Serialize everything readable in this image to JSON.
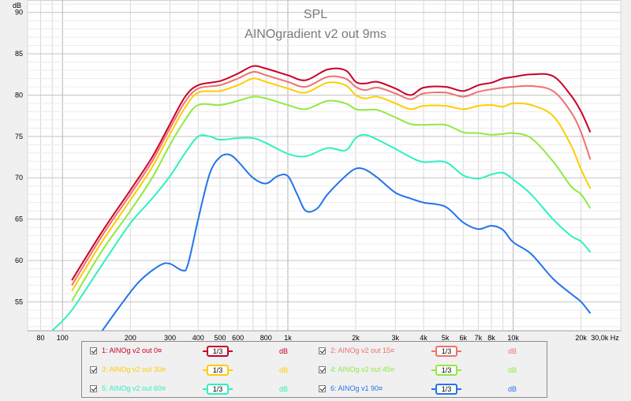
{
  "chart_data": {
    "type": "line",
    "title": "SPL",
    "subtitle": "AINOgradient v2 out 9ms",
    "y_unit": "dB",
    "x_unit": "Hz",
    "xscale": "log",
    "xlim": [
      70,
      30000
    ],
    "ylim": [
      51.5,
      91.5
    ],
    "grid": true,
    "legend_position": "bottom",
    "x_ticks": [
      {
        "v": 80,
        "label": "80"
      },
      {
        "v": 100,
        "label": "100"
      },
      {
        "v": 200,
        "label": "200"
      },
      {
        "v": 300,
        "label": "300"
      },
      {
        "v": 400,
        "label": "400"
      },
      {
        "v": 500,
        "label": "500"
      },
      {
        "v": 600,
        "label": "600"
      },
      {
        "v": 800,
        "label": "800"
      },
      {
        "v": 1000,
        "label": "1k"
      },
      {
        "v": 2000,
        "label": "2k"
      },
      {
        "v": 3000,
        "label": "3k"
      },
      {
        "v": 4000,
        "label": "4k"
      },
      {
        "v": 5000,
        "label": "5k"
      },
      {
        "v": 6000,
        "label": "6k"
      },
      {
        "v": 7000,
        "label": "7k"
      },
      {
        "v": 8000,
        "label": "8k"
      },
      {
        "v": 10000,
        "label": "10k"
      },
      {
        "v": 20000,
        "label": "20k"
      },
      {
        "v": 30000,
        "label": "30,0k Hz"
      }
    ],
    "y_ticks": [
      {
        "v": 90,
        "label": "90"
      },
      {
        "v": 85,
        "label": "85"
      },
      {
        "v": 80,
        "label": "80"
      },
      {
        "v": 75,
        "label": "75"
      },
      {
        "v": 70,
        "label": "70"
      },
      {
        "v": 65,
        "label": "65"
      },
      {
        "v": 60,
        "label": "60"
      },
      {
        "v": 55,
        "label": "55"
      }
    ],
    "series": [
      {
        "name": "1: AINOg v2 out 0°",
        "color": "#c8002a",
        "points": [
          [
            110,
            57.6
          ],
          [
            150,
            63.5
          ],
          [
            200,
            68.5
          ],
          [
            250,
            72.5
          ],
          [
            300,
            76.5
          ],
          [
            350,
            79.8
          ],
          [
            400,
            81.2
          ],
          [
            500,
            81.7
          ],
          [
            600,
            82.6
          ],
          [
            700,
            83.5
          ],
          [
            800,
            83.2
          ],
          [
            1000,
            82.4
          ],
          [
            1200,
            81.8
          ],
          [
            1500,
            83.1
          ],
          [
            1800,
            83.0
          ],
          [
            2000,
            81.6
          ],
          [
            2200,
            81.4
          ],
          [
            2500,
            81.6
          ],
          [
            3000,
            80.8
          ],
          [
            3500,
            80.0
          ],
          [
            4000,
            80.9
          ],
          [
            5000,
            81.0
          ],
          [
            6000,
            80.5
          ],
          [
            7000,
            81.2
          ],
          [
            8000,
            81.5
          ],
          [
            9000,
            82.0
          ],
          [
            10000,
            82.2
          ],
          [
            12000,
            82.5
          ],
          [
            15000,
            82.3
          ],
          [
            18000,
            80.0
          ],
          [
            20000,
            78.0
          ],
          [
            22000,
            75.5
          ]
        ]
      },
      {
        "name": "2: AINOg v2 out 15°",
        "color": "#f07070",
        "points": [
          [
            110,
            57.0
          ],
          [
            150,
            63.0
          ],
          [
            200,
            68.0
          ],
          [
            250,
            72.0
          ],
          [
            300,
            76.0
          ],
          [
            350,
            79.2
          ],
          [
            400,
            80.8
          ],
          [
            500,
            81.2
          ],
          [
            600,
            82.0
          ],
          [
            700,
            82.8
          ],
          [
            800,
            82.4
          ],
          [
            1000,
            81.6
          ],
          [
            1200,
            81.0
          ],
          [
            1500,
            82.2
          ],
          [
            1800,
            82.0
          ],
          [
            2000,
            81.0
          ],
          [
            2200,
            80.6
          ],
          [
            2500,
            80.9
          ],
          [
            3000,
            80.2
          ],
          [
            3500,
            79.5
          ],
          [
            4000,
            80.2
          ],
          [
            5000,
            80.3
          ],
          [
            6000,
            79.8
          ],
          [
            7000,
            80.4
          ],
          [
            8000,
            80.7
          ],
          [
            9000,
            80.9
          ],
          [
            10000,
            81.0
          ],
          [
            12000,
            81.1
          ],
          [
            15000,
            80.5
          ],
          [
            18000,
            78.0
          ],
          [
            20000,
            75.5
          ],
          [
            22000,
            72.2
          ]
        ]
      },
      {
        "name": "3: AINOg v2 out 30°",
        "color": "#ffcc00",
        "points": [
          [
            110,
            56.3
          ],
          [
            150,
            62.3
          ],
          [
            200,
            67.3
          ],
          [
            250,
            71.3
          ],
          [
            300,
            75.3
          ],
          [
            350,
            78.5
          ],
          [
            400,
            80.3
          ],
          [
            500,
            80.5
          ],
          [
            600,
            81.2
          ],
          [
            700,
            82.0
          ],
          [
            800,
            81.6
          ],
          [
            1000,
            80.8
          ],
          [
            1200,
            80.3
          ],
          [
            1500,
            81.5
          ],
          [
            1800,
            81.2
          ],
          [
            2000,
            80.0
          ],
          [
            2200,
            79.6
          ],
          [
            2500,
            79.8
          ],
          [
            3000,
            79.0
          ],
          [
            3500,
            78.3
          ],
          [
            4000,
            78.7
          ],
          [
            5000,
            78.7
          ],
          [
            6000,
            78.3
          ],
          [
            7000,
            78.7
          ],
          [
            8000,
            78.8
          ],
          [
            9000,
            78.6
          ],
          [
            10000,
            79.0
          ],
          [
            12000,
            78.8
          ],
          [
            15000,
            77.5
          ],
          [
            18000,
            74.0
          ],
          [
            20000,
            71.0
          ],
          [
            22000,
            68.7
          ]
        ]
      },
      {
        "name": "4: AINOg v2 out 45°",
        "color": "#90ea40",
        "points": [
          [
            110,
            55.1
          ],
          [
            150,
            61.2
          ],
          [
            200,
            66.0
          ],
          [
            250,
            70.0
          ],
          [
            300,
            74.0
          ],
          [
            350,
            77.0
          ],
          [
            400,
            78.8
          ],
          [
            500,
            78.8
          ],
          [
            600,
            79.3
          ],
          [
            700,
            79.8
          ],
          [
            800,
            79.6
          ],
          [
            1000,
            78.8
          ],
          [
            1200,
            78.3
          ],
          [
            1500,
            79.3
          ],
          [
            1800,
            79.0
          ],
          [
            2000,
            78.3
          ],
          [
            2200,
            78.2
          ],
          [
            2500,
            78.2
          ],
          [
            3000,
            77.3
          ],
          [
            3500,
            76.5
          ],
          [
            4000,
            76.4
          ],
          [
            5000,
            76.4
          ],
          [
            6000,
            75.5
          ],
          [
            7000,
            75.4
          ],
          [
            8000,
            75.2
          ],
          [
            9000,
            75.3
          ],
          [
            10000,
            75.4
          ],
          [
            12000,
            74.8
          ],
          [
            15000,
            72.0
          ],
          [
            18000,
            69.0
          ],
          [
            20000,
            68.0
          ],
          [
            22000,
            66.3
          ]
        ]
      },
      {
        "name": "5: AINOg v2 out 60°",
        "color": "#30f0c0",
        "points": [
          [
            90,
            51.5
          ],
          [
            110,
            54.0
          ],
          [
            150,
            59.5
          ],
          [
            200,
            64.5
          ],
          [
            250,
            67.5
          ],
          [
            300,
            70.2
          ],
          [
            350,
            73.0
          ],
          [
            400,
            75.0
          ],
          [
            450,
            75.0
          ],
          [
            500,
            74.6
          ],
          [
            600,
            74.8
          ],
          [
            700,
            74.8
          ],
          [
            800,
            74.2
          ],
          [
            1000,
            72.9
          ],
          [
            1200,
            72.6
          ],
          [
            1500,
            73.6
          ],
          [
            1800,
            73.3
          ],
          [
            2000,
            74.8
          ],
          [
            2200,
            75.2
          ],
          [
            2500,
            74.6
          ],
          [
            3000,
            73.5
          ],
          [
            3500,
            72.5
          ],
          [
            4000,
            71.9
          ],
          [
            5000,
            71.9
          ],
          [
            6000,
            70.3
          ],
          [
            7000,
            69.9
          ],
          [
            8000,
            70.4
          ],
          [
            9000,
            70.6
          ],
          [
            10000,
            69.8
          ],
          [
            12000,
            68.0
          ],
          [
            15000,
            65.0
          ],
          [
            18000,
            63.0
          ],
          [
            20000,
            62.3
          ],
          [
            22000,
            61.0
          ]
        ]
      },
      {
        "name": "6: AINOg v1 90°",
        "color": "#2474ec",
        "points": [
          [
            150,
            51.5
          ],
          [
            180,
            54.5
          ],
          [
            220,
            57.5
          ],
          [
            270,
            59.4
          ],
          [
            300,
            59.6
          ],
          [
            340,
            58.8
          ],
          [
            360,
            59.5
          ],
          [
            400,
            65.0
          ],
          [
            450,
            70.5
          ],
          [
            500,
            72.5
          ],
          [
            550,
            72.8
          ],
          [
            600,
            72.0
          ],
          [
            700,
            70.0
          ],
          [
            800,
            69.3
          ],
          [
            900,
            70.2
          ],
          [
            1000,
            70.2
          ],
          [
            1100,
            68.0
          ],
          [
            1200,
            66.0
          ],
          [
            1350,
            66.3
          ],
          [
            1500,
            68.0
          ],
          [
            1800,
            70.2
          ],
          [
            2000,
            71.1
          ],
          [
            2200,
            71.0
          ],
          [
            2500,
            70.0
          ],
          [
            3000,
            68.2
          ],
          [
            3500,
            67.5
          ],
          [
            4000,
            67.0
          ],
          [
            5000,
            66.5
          ],
          [
            6000,
            64.6
          ],
          [
            7000,
            63.8
          ],
          [
            8000,
            64.2
          ],
          [
            9000,
            63.7
          ],
          [
            10000,
            62.2
          ],
          [
            12000,
            60.8
          ],
          [
            15000,
            57.8
          ],
          [
            18000,
            56.0
          ],
          [
            20000,
            55.0
          ],
          [
            22000,
            53.6
          ]
        ]
      }
    ]
  },
  "legend": {
    "items": [
      {
        "label": "1: AINOg v2 out 0¤",
        "color": "#c8002a",
        "smoothing": "1/3",
        "unit": "dB"
      },
      {
        "label": "2: AINOg v2 out 15¤",
        "color": "#f07070",
        "smoothing": "1/3",
        "unit": "dB"
      },
      {
        "label": "3: AINOg v2 out 30¤",
        "color": "#ffcc00",
        "smoothing": "1/3",
        "unit": "dB"
      },
      {
        "label": "4: AINOg v2 out 45¤",
        "color": "#90ea40",
        "smoothing": "1/3",
        "unit": "dB"
      },
      {
        "label": "5: AINOg v2 out 60¤",
        "color": "#30f0c0",
        "smoothing": "1/3",
        "unit": "dB"
      },
      {
        "label": "6: AINOg v1 90¤",
        "color": "#2474ec",
        "smoothing": "1/3",
        "unit": "dB"
      }
    ]
  }
}
